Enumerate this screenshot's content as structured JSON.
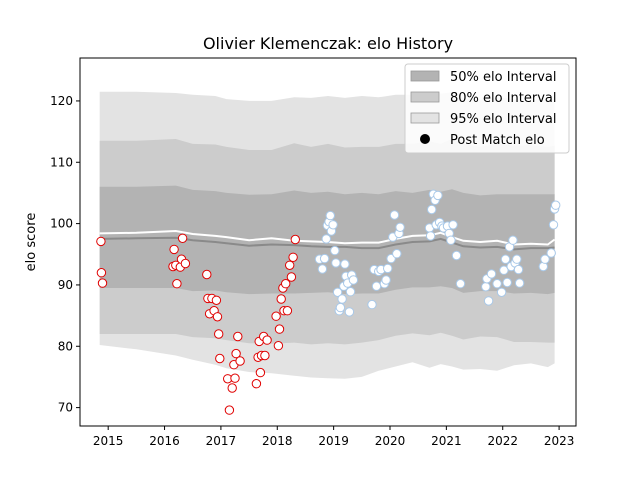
{
  "chart_data": {
    "type": "scatter",
    "title": "Olivier Klemenczak: elo History",
    "xlabel": "",
    "ylabel": "elo score",
    "xlim": [
      2014.5,
      2023.3
    ],
    "ylim": [
      67,
      127
    ],
    "x_ticks": [
      2015,
      2016,
      2017,
      2018,
      2019,
      2020,
      2021,
      2022,
      2023
    ],
    "x_tick_labels": [
      "2015",
      "2016",
      "2017",
      "2018",
      "2019",
      "2020",
      "2021",
      "2022",
      "2023"
    ],
    "y_ticks": [
      70,
      80,
      90,
      100,
      110,
      120
    ],
    "y_tick_labels": [
      "70",
      "80",
      "90",
      "100",
      "110",
      "120"
    ],
    "grid": false,
    "legend_position": "top-right",
    "legend": [
      {
        "label": "50% elo Interval",
        "color": "#b3b3b3",
        "kind": "patch"
      },
      {
        "label": "80% elo Interval",
        "color": "#cccccc",
        "kind": "patch"
      },
      {
        "label": "95% elo Interval",
        "color": "#e3e3e3",
        "kind": "patch"
      },
      {
        "label": "Post Match elo",
        "color": "#000000",
        "kind": "marker"
      }
    ],
    "intervals": {
      "x": [
        2014.85,
        2015.5,
        2016.2,
        2016.5,
        2016.9,
        2017.1,
        2017.5,
        2017.9,
        2018.3,
        2018.6,
        2018.9,
        2019.2,
        2019.5,
        2019.8,
        2020.1,
        2020.4,
        2020.7,
        2020.9,
        2021.1,
        2021.3,
        2021.6,
        2021.9,
        2022.2,
        2022.5,
        2022.8,
        2022.92
      ],
      "p50": {
        "upper": [
          106,
          106,
          106.2,
          105.5,
          105.3,
          105,
          104.7,
          104.8,
          105.4,
          105,
          105.2,
          104.8,
          105,
          104.8,
          105.3,
          105,
          105.5,
          105.2,
          105.6,
          105,
          104.6,
          104.8,
          104.8,
          104.8,
          104.8,
          104.8
        ],
        "lower": [
          89.5,
          89.5,
          89.5,
          89,
          89.1,
          88.8,
          88.5,
          88.6,
          88.6,
          88.7,
          88.8,
          88.5,
          88.6,
          88.6,
          89.2,
          89.6,
          89.6,
          89.8,
          89.5,
          88.7,
          89,
          89,
          88.6,
          88.7,
          88.5,
          88.7
        ]
      },
      "p80": {
        "upper": [
          113.5,
          113.5,
          113.8,
          113,
          112.9,
          112.5,
          112,
          112,
          113.1,
          112.5,
          113,
          112.4,
          112.5,
          112.5,
          113,
          113,
          113.4,
          113,
          113.8,
          113,
          112.5,
          113,
          112.7,
          112.8,
          112.5,
          112.7
        ],
        "lower": [
          82,
          82,
          82,
          81.5,
          81.3,
          81,
          80.5,
          80.4,
          80.6,
          80.3,
          80.5,
          80.3,
          80.6,
          81,
          81.7,
          82.1,
          81.8,
          82.2,
          81.7,
          81.1,
          81.6,
          81.5,
          80.7,
          80.7,
          80.6,
          80.6
        ]
      },
      "p95": {
        "upper": [
          121.5,
          121.5,
          121.3,
          121,
          120.8,
          120.3,
          120,
          120,
          120.6,
          120.5,
          120.8,
          120.5,
          120.8,
          120.6,
          121,
          121,
          121.5,
          121.2,
          121.4,
          120.5,
          120.2,
          120.6,
          120.3,
          120.2,
          120.3,
          120.3
        ],
        "lower": [
          80.2,
          79.5,
          78.5,
          77.8,
          77,
          76.4,
          75.8,
          75.6,
          75.2,
          74.9,
          74.8,
          74.7,
          75,
          76,
          76.7,
          77.4,
          76.5,
          77.1,
          76.7,
          76.2,
          76.3,
          76,
          76.9,
          77.2,
          76.6,
          77.2
        ]
      },
      "median": [
        97.5,
        97.6,
        97.7,
        97.3,
        97,
        96.8,
        96.4,
        96.6,
        96.5,
        96.3,
        96.2,
        96.2,
        96,
        96,
        96.6,
        97,
        97.1,
        97.5,
        96.9,
        96.3,
        96.1,
        96.2,
        95.8,
        96,
        96,
        96.1
      ],
      "mean": [
        98.4,
        98.5,
        98.8,
        98.3,
        98,
        97.8,
        97.3,
        97.6,
        97.2,
        97.1,
        97,
        96.8,
        96.9,
        96.9,
        97.5,
        98,
        98.1,
        98.5,
        97.8,
        97.2,
        97,
        97.2,
        96.6,
        96.7,
        96.6,
        97.4
      ]
    },
    "series": [
      {
        "name": "Post Match elo",
        "edge_color": "#e00000",
        "points": [
          [
            2014.87,
            97.1
          ],
          [
            2014.88,
            92.0
          ],
          [
            2014.9,
            90.3
          ],
          [
            2016.17,
            95.8
          ],
          [
            2016.15,
            93.0
          ],
          [
            2016.2,
            93.2
          ],
          [
            2016.22,
            90.2
          ],
          [
            2016.28,
            92.9
          ],
          [
            2016.3,
            94.2
          ],
          [
            2016.32,
            97.6
          ],
          [
            2016.37,
            93.5
          ],
          [
            2016.75,
            91.7
          ],
          [
            2016.77,
            87.8
          ],
          [
            2016.8,
            85.3
          ],
          [
            2016.84,
            87.8
          ],
          [
            2016.88,
            85.8
          ],
          [
            2016.92,
            87.5
          ],
          [
            2016.94,
            84.8
          ],
          [
            2016.96,
            82.0
          ],
          [
            2016.98,
            78.0
          ],
          [
            2017.12,
            74.7
          ],
          [
            2017.15,
            69.6
          ],
          [
            2017.2,
            73.2
          ],
          [
            2017.23,
            77.0
          ],
          [
            2017.25,
            74.8
          ],
          [
            2017.27,
            78.8
          ],
          [
            2017.3,
            81.6
          ],
          [
            2017.34,
            77.6
          ],
          [
            2017.63,
            73.9
          ],
          [
            2017.66,
            78.2
          ],
          [
            2017.68,
            80.8
          ],
          [
            2017.7,
            75.7
          ],
          [
            2017.72,
            78.5
          ],
          [
            2017.76,
            81.6
          ],
          [
            2017.78,
            78.5
          ],
          [
            2017.82,
            81.0
          ],
          [
            2017.98,
            84.9
          ],
          [
            2018.02,
            80.1
          ],
          [
            2018.04,
            82.8
          ],
          [
            2018.07,
            87.7
          ],
          [
            2018.1,
            89.5
          ],
          [
            2018.12,
            85.8
          ],
          [
            2018.15,
            90.2
          ],
          [
            2018.18,
            85.8
          ],
          [
            2018.22,
            93.2
          ],
          [
            2018.25,
            91.3
          ],
          [
            2018.28,
            94.5
          ],
          [
            2018.32,
            97.4
          ]
        ]
      },
      {
        "name": "Post Match elo",
        "edge_color": "#a8c8e8",
        "points": [
          [
            2018.75,
            94.2
          ],
          [
            2018.8,
            92.6
          ],
          [
            2018.84,
            94.3
          ],
          [
            2018.87,
            97.5
          ],
          [
            2018.89,
            99.7
          ],
          [
            2018.92,
            100.3
          ],
          [
            2018.94,
            101.3
          ],
          [
            2018.96,
            98.8
          ],
          [
            2018.99,
            99.8
          ],
          [
            2019.02,
            95.6
          ],
          [
            2019.04,
            93.6
          ],
          [
            2019.07,
            88.8
          ],
          [
            2019.1,
            85.8
          ],
          [
            2019.12,
            86.3
          ],
          [
            2019.15,
            87.7
          ],
          [
            2019.18,
            89.8
          ],
          [
            2019.2,
            93.4
          ],
          [
            2019.22,
            91.4
          ],
          [
            2019.25,
            90.3
          ],
          [
            2019.28,
            85.6
          ],
          [
            2019.3,
            88.9
          ],
          [
            2019.32,
            91.6
          ],
          [
            2019.35,
            90.8
          ],
          [
            2019.68,
            86.8
          ],
          [
            2019.72,
            92.5
          ],
          [
            2019.76,
            89.8
          ],
          [
            2019.8,
            92.2
          ],
          [
            2019.84,
            92.5
          ],
          [
            2019.9,
            90.2
          ],
          [
            2019.93,
            90.8
          ],
          [
            2019.96,
            92.7
          ],
          [
            2020.02,
            94.3
          ],
          [
            2020.05,
            97.8
          ],
          [
            2020.08,
            101.4
          ],
          [
            2020.12,
            95.1
          ],
          [
            2020.16,
            98.4
          ],
          [
            2020.18,
            99.4
          ],
          [
            2020.7,
            99.3
          ],
          [
            2020.72,
            98.0
          ],
          [
            2020.74,
            102.3
          ],
          [
            2020.77,
            104.8
          ],
          [
            2020.8,
            103.8
          ],
          [
            2020.82,
            99.8
          ],
          [
            2020.85,
            104.6
          ],
          [
            2020.88,
            100.2
          ],
          [
            2020.92,
            99.6
          ],
          [
            2020.95,
            99.3
          ],
          [
            2021.02,
            99.6
          ],
          [
            2021.05,
            98.4
          ],
          [
            2021.08,
            97.3
          ],
          [
            2021.12,
            99.8
          ],
          [
            2021.18,
            94.8
          ],
          [
            2021.25,
            90.2
          ],
          [
            2021.7,
            89.7
          ],
          [
            2021.72,
            91.0
          ],
          [
            2021.75,
            87.4
          ],
          [
            2021.8,
            91.8
          ],
          [
            2021.9,
            90.2
          ],
          [
            2021.98,
            88.8
          ],
          [
            2022.02,
            92.4
          ],
          [
            2022.05,
            94.2
          ],
          [
            2022.08,
            90.4
          ],
          [
            2022.12,
            96.2
          ],
          [
            2022.15,
            93.0
          ],
          [
            2022.18,
            97.3
          ],
          [
            2022.22,
            93.6
          ],
          [
            2022.25,
            94.2
          ],
          [
            2022.28,
            92.5
          ],
          [
            2022.3,
            90.3
          ],
          [
            2022.72,
            93.0
          ],
          [
            2022.75,
            94.2
          ],
          [
            2022.86,
            95.2
          ],
          [
            2022.9,
            99.8
          ],
          [
            2022.92,
            102.4
          ],
          [
            2022.94,
            103.0
          ]
        ]
      }
    ]
  }
}
